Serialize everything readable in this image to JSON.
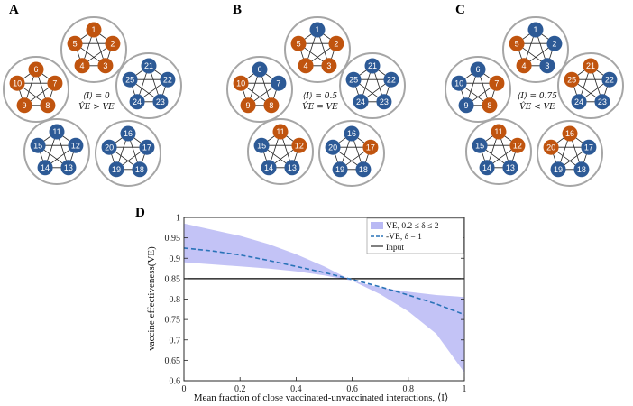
{
  "colors": {
    "orange": "#c0540f",
    "blue": "#2d5a96",
    "ring": "#a6a6a6",
    "band": "#b9b9f4",
    "mean": "#2a73b8",
    "input": "#000000"
  },
  "panels": [
    {
      "letter": "A",
      "anno_line1": "⟨I⟩ = 0",
      "anno_line2": "V̂E > VE",
      "clusters": [
        {
          "nodes": [
            {
              "label": "1",
              "color": "orange"
            },
            {
              "label": "2",
              "color": "orange"
            },
            {
              "label": "3",
              "color": "orange"
            },
            {
              "label": "4",
              "color": "orange"
            },
            {
              "label": "5",
              "color": "orange"
            }
          ]
        },
        {
          "nodes": [
            {
              "label": "6",
              "color": "orange"
            },
            {
              "label": "7",
              "color": "orange"
            },
            {
              "label": "8",
              "color": "orange"
            },
            {
              "label": "9",
              "color": "orange"
            },
            {
              "label": "10",
              "color": "orange"
            }
          ]
        },
        {
          "nodes": [
            {
              "label": "21",
              "color": "blue"
            },
            {
              "label": "22",
              "color": "blue"
            },
            {
              "label": "23",
              "color": "blue"
            },
            {
              "label": "24",
              "color": "blue"
            },
            {
              "label": "25",
              "color": "blue"
            }
          ]
        },
        {
          "nodes": [
            {
              "label": "11",
              "color": "blue"
            },
            {
              "label": "12",
              "color": "blue"
            },
            {
              "label": "13",
              "color": "blue"
            },
            {
              "label": "14",
              "color": "blue"
            },
            {
              "label": "15",
              "color": "blue"
            }
          ]
        },
        {
          "nodes": [
            {
              "label": "16",
              "color": "blue"
            },
            {
              "label": "17",
              "color": "blue"
            },
            {
              "label": "18",
              "color": "blue"
            },
            {
              "label": "19",
              "color": "blue"
            },
            {
              "label": "20",
              "color": "blue"
            }
          ]
        }
      ]
    },
    {
      "letter": "B",
      "anno_line1": "⟨I⟩ = 0.5",
      "anno_line2": "V̂E = VE",
      "clusters": [
        {
          "nodes": [
            {
              "label": "1",
              "color": "blue"
            },
            {
              "label": "2",
              "color": "orange"
            },
            {
              "label": "3",
              "color": "orange"
            },
            {
              "label": "4",
              "color": "orange"
            },
            {
              "label": "5",
              "color": "orange"
            }
          ]
        },
        {
          "nodes": [
            {
              "label": "6",
              "color": "blue"
            },
            {
              "label": "7",
              "color": "blue"
            },
            {
              "label": "8",
              "color": "orange"
            },
            {
              "label": "9",
              "color": "orange"
            },
            {
              "label": "10",
              "color": "orange"
            }
          ]
        },
        {
          "nodes": [
            {
              "label": "21",
              "color": "blue"
            },
            {
              "label": "22",
              "color": "blue"
            },
            {
              "label": "23",
              "color": "blue"
            },
            {
              "label": "24",
              "color": "blue"
            },
            {
              "label": "25",
              "color": "blue"
            }
          ]
        },
        {
          "nodes": [
            {
              "label": "11",
              "color": "orange"
            },
            {
              "label": "12",
              "color": "orange"
            },
            {
              "label": "13",
              "color": "blue"
            },
            {
              "label": "14",
              "color": "blue"
            },
            {
              "label": "15",
              "color": "blue"
            }
          ]
        },
        {
          "nodes": [
            {
              "label": "16",
              "color": "blue"
            },
            {
              "label": "17",
              "color": "orange"
            },
            {
              "label": "18",
              "color": "blue"
            },
            {
              "label": "19",
              "color": "blue"
            },
            {
              "label": "20",
              "color": "blue"
            }
          ]
        }
      ]
    },
    {
      "letter": "C",
      "anno_line1": "⟨I⟩ = 0.75",
      "anno_line2": "V̂E < VE",
      "clusters": [
        {
          "nodes": [
            {
              "label": "1",
              "color": "blue"
            },
            {
              "label": "2",
              "color": "blue"
            },
            {
              "label": "3",
              "color": "blue"
            },
            {
              "label": "4",
              "color": "orange"
            },
            {
              "label": "5",
              "color": "orange"
            }
          ]
        },
        {
          "nodes": [
            {
              "label": "6",
              "color": "blue"
            },
            {
              "label": "7",
              "color": "orange"
            },
            {
              "label": "8",
              "color": "orange"
            },
            {
              "label": "9",
              "color": "blue"
            },
            {
              "label": "10",
              "color": "blue"
            }
          ]
        },
        {
          "nodes": [
            {
              "label": "21",
              "color": "orange"
            },
            {
              "label": "22",
              "color": "blue"
            },
            {
              "label": "23",
              "color": "blue"
            },
            {
              "label": "24",
              "color": "blue"
            },
            {
              "label": "25",
              "color": "orange"
            }
          ]
        },
        {
          "nodes": [
            {
              "label": "11",
              "color": "orange"
            },
            {
              "label": "12",
              "color": "orange"
            },
            {
              "label": "13",
              "color": "blue"
            },
            {
              "label": "14",
              "color": "blue"
            },
            {
              "label": "15",
              "color": "blue"
            }
          ]
        },
        {
          "nodes": [
            {
              "label": "16",
              "color": "orange"
            },
            {
              "label": "17",
              "color": "blue"
            },
            {
              "label": "18",
              "color": "blue"
            },
            {
              "label": "19",
              "color": "blue"
            },
            {
              "label": "20",
              "color": "orange"
            }
          ]
        }
      ]
    }
  ],
  "chart_data": {
    "panel_letter": "D",
    "type": "line",
    "xlabel": "Mean fraction of close vaccinated-unvaccinated interactions, ⟨I⟩",
    "ylabel": "vaccine effectiveness(VE)",
    "xlim": [
      0,
      1
    ],
    "ylim": [
      0.6,
      1
    ],
    "xticks": [
      "0",
      "0.2",
      "0.4",
      "0.6",
      "0.8",
      "1"
    ],
    "yticks": [
      "0.6",
      "0.65",
      "0.7",
      "0.75",
      "0.8",
      "0.85",
      "0.9",
      "0.95",
      "1"
    ],
    "grid": false,
    "legend_position": "top-right",
    "legend": [
      {
        "label": "VE, 0.2 ≤ δ ≤ 2",
        "style": "band"
      },
      {
        "label": "-VE, δ = 1",
        "style": "dashed"
      },
      {
        "label": "Input",
        "style": "solid"
      }
    ],
    "x": [
      0,
      0.1,
      0.2,
      0.3,
      0.4,
      0.5,
      0.6,
      0.7,
      0.8,
      0.9,
      1.0
    ],
    "series": [
      {
        "name": "VE, 0.2 ≤ δ ≤ 2 (upper)",
        "values": [
          0.985,
          0.97,
          0.955,
          0.935,
          0.91,
          0.88,
          0.845,
          0.828,
          0.818,
          0.81,
          0.805
        ]
      },
      {
        "name": "VE, 0.2 ≤ δ ≤ 2 (lower)",
        "values": [
          0.89,
          0.885,
          0.88,
          0.875,
          0.868,
          0.858,
          0.845,
          0.812,
          0.77,
          0.715,
          0.62
        ]
      },
      {
        "name": "-VE, δ = 1",
        "values": [
          0.925,
          0.918,
          0.908,
          0.895,
          0.88,
          0.865,
          0.848,
          0.83,
          0.81,
          0.788,
          0.762
        ]
      },
      {
        "name": "Input",
        "values": [
          0.85,
          0.85,
          0.85,
          0.85,
          0.85,
          0.85,
          0.85,
          0.85,
          0.85,
          0.85,
          0.85
        ]
      }
    ]
  }
}
